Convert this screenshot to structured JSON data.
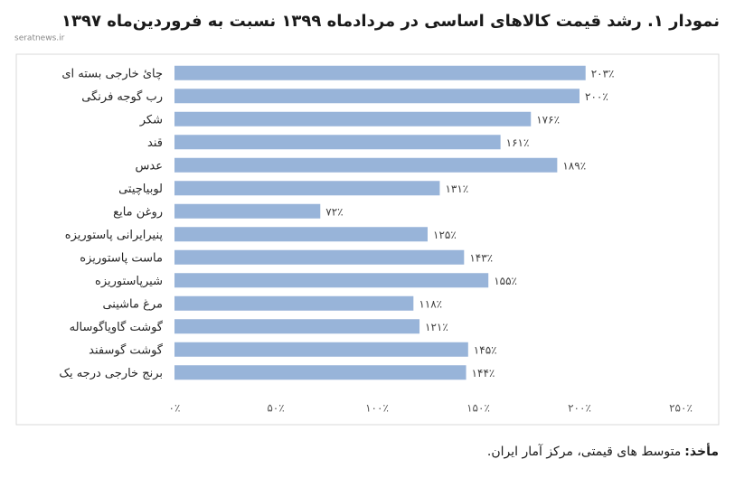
{
  "watermark": "seratnews.ir",
  "chart_data": {
    "type": "bar",
    "orientation": "horizontal",
    "title": "نمودار ۱. رشد قیمت کالاهای اساسی در مردادماه ۱۳۹۹ نسبت به فروردین‌ماه ۱۳۹۷",
    "categories": [
      "چائ خارجی بسته ای",
      "رب گوجه فرنگی",
      "شکر",
      "قند",
      "عدس",
      "لوبیاچیتی",
      "روغن مایع",
      "پنیرایرانی پاستوریزه",
      "ماست پاستوریزه",
      "شیرپاستوریزه",
      "مرغ ماشینی",
      "گوشت گاویاگوساله",
      "گوشت گوسفند",
      "برنج خارجی درجه یک"
    ],
    "values": [
      203,
      200,
      176,
      161,
      189,
      131,
      72,
      125,
      143,
      155,
      118,
      121,
      145,
      144
    ],
    "value_labels": [
      "۲۰۳٪",
      "۲۰۰٪",
      "۱۷۶٪",
      "۱۶۱٪",
      "۱۸۹٪",
      "۱۳۱٪",
      "۷۲٪",
      "۱۲۵٪",
      "۱۴۳٪",
      "۱۵۵٪",
      "۱۱۸٪",
      "۱۲۱٪",
      "۱۴۵٪",
      "۱۴۴٪"
    ],
    "color": "#98b4d9",
    "xlim": [
      0,
      250
    ],
    "xticks": [
      {
        "value": 0,
        "label": "۰٪"
      },
      {
        "value": 50,
        "label": "۵۰٪"
      },
      {
        "value": 100,
        "label": "۱۰۰٪"
      },
      {
        "value": 150,
        "label": "۱۵۰٪"
      },
      {
        "value": 200,
        "label": "۲۰۰٪"
      },
      {
        "value": 250,
        "label": "۲۵۰٪"
      }
    ],
    "grid": false
  },
  "source": {
    "label": "مأخذ:",
    "text": "متوسط های قیمتی، مرکز آمار ایران."
  }
}
